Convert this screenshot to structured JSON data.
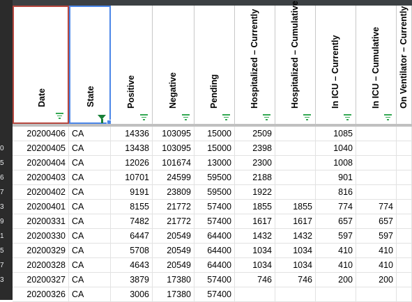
{
  "columns": [
    {
      "key": "date",
      "label": "Date",
      "filter": "filter-lines"
    },
    {
      "key": "state",
      "label": "State",
      "filter": "funnel"
    },
    {
      "key": "positive",
      "label": "Positive",
      "filter": "filter-lines"
    },
    {
      "key": "negative",
      "label": "Negative",
      "filter": "filter-lines"
    },
    {
      "key": "pending",
      "label": "Pending",
      "filter": "filter-lines"
    },
    {
      "key": "hosp_cur",
      "label": "Hospitalized – Currently",
      "filter": "filter-lines"
    },
    {
      "key": "hosp_cum",
      "label": "Hospitalized – Cumulative",
      "filter": "filter-lines"
    },
    {
      "key": "icu_cur",
      "label": "In ICU – Currently",
      "filter": "filter-lines"
    },
    {
      "key": "icu_cum",
      "label": "In ICU – Cumulative",
      "filter": "filter-lines"
    },
    {
      "key": "vent_cur",
      "label": "On Ventilator – Currently",
      "filter": "filter-lines"
    }
  ],
  "row_numbers": [
    "",
    "0",
    "5",
    "6",
    "7",
    "3",
    "9",
    "1",
    "5",
    "7",
    "3",
    ""
  ],
  "rows": [
    [
      "20200406",
      "CA",
      "14336",
      "103095",
      "15000",
      "2509",
      "",
      "1085",
      "",
      ""
    ],
    [
      "20200405",
      "CA",
      "13438",
      "103095",
      "15000",
      "2398",
      "",
      "1040",
      "",
      ""
    ],
    [
      "20200404",
      "CA",
      "12026",
      "101674",
      "13000",
      "2300",
      "",
      "1008",
      "",
      ""
    ],
    [
      "20200403",
      "CA",
      "10701",
      "24599",
      "59500",
      "2188",
      "",
      "901",
      "",
      ""
    ],
    [
      "20200402",
      "CA",
      "9191",
      "23809",
      "59500",
      "1922",
      "",
      "816",
      "",
      ""
    ],
    [
      "20200401",
      "CA",
      "8155",
      "21772",
      "57400",
      "1855",
      "1855",
      "774",
      "774",
      ""
    ],
    [
      "20200331",
      "CA",
      "7482",
      "21772",
      "57400",
      "1617",
      "1617",
      "657",
      "657",
      ""
    ],
    [
      "20200330",
      "CA",
      "6447",
      "20549",
      "64400",
      "1432",
      "1432",
      "597",
      "597",
      ""
    ],
    [
      "20200329",
      "CA",
      "5708",
      "20549",
      "64400",
      "1034",
      "1034",
      "410",
      "410",
      ""
    ],
    [
      "20200328",
      "CA",
      "4643",
      "20549",
      "64400",
      "1034",
      "1034",
      "410",
      "410",
      ""
    ],
    [
      "20200327",
      "CA",
      "3879",
      "17380",
      "57400",
      "746",
      "746",
      "200",
      "200",
      ""
    ],
    [
      "20200326",
      "CA",
      "3006",
      "17380",
      "57400",
      "",
      "",
      "",
      "",
      ""
    ]
  ]
}
